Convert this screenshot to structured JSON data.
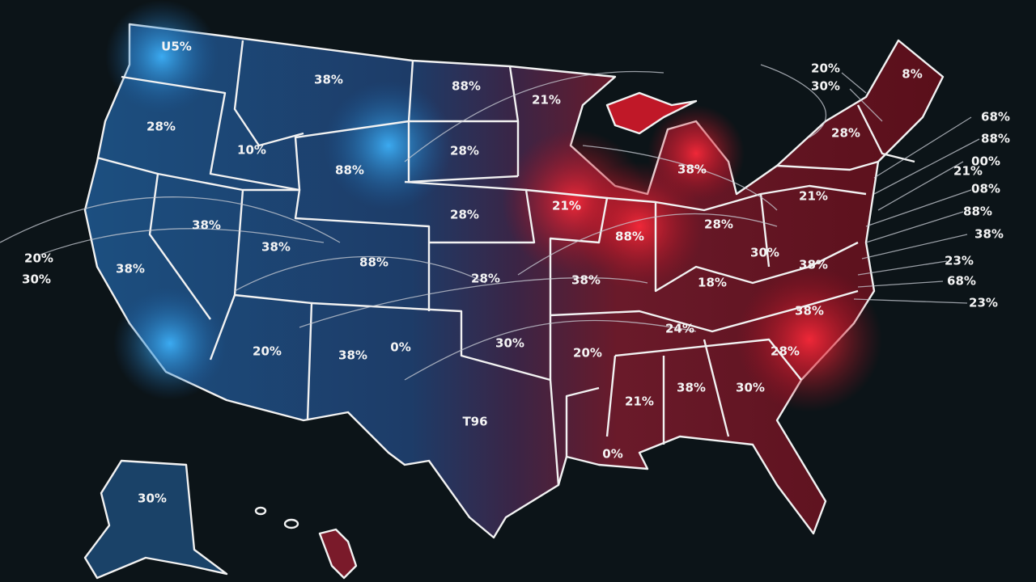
{
  "labels": [
    "U5%",
    "38%",
    "88%",
    "21%",
    "28%",
    "10%",
    "88%",
    "28%",
    "21%",
    "28%",
    "38%",
    "38%",
    "88%",
    "38%",
    "28%",
    "38%",
    "88%",
    "20%",
    "38%",
    "0%",
    "30%",
    "20%",
    "T96",
    "30%",
    "21%",
    "38%",
    "30%",
    "0%",
    "28%",
    "38%",
    "18%",
    "30%",
    "38%",
    "28%",
    "21%",
    "38%",
    "28%",
    "8%",
    "20%",
    "30%",
    "68%",
    "88%",
    "00%",
    "21%",
    "08%",
    "88%",
    "38%",
    "23%",
    "68%",
    "23%",
    "20%",
    "30%",
    "24%"
  ]
}
